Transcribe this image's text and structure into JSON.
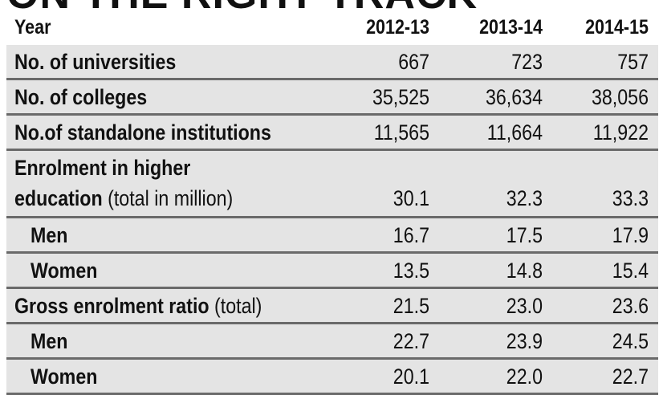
{
  "title": "ON THE RIGHT TRACK",
  "chart_data": {
    "type": "table",
    "columns": [
      "Year",
      "2012-13",
      "2013-14",
      "2014-15"
    ],
    "rows": [
      {
        "label": "No. of universities",
        "values": [
          "667",
          "723",
          "757"
        ]
      },
      {
        "label": "No. of colleges",
        "values": [
          "35,525",
          "36,634",
          "38,056"
        ]
      },
      {
        "label": "No.of standalone institutions",
        "values": [
          "11,565",
          "11,664",
          "11,922"
        ]
      },
      {
        "label": "Enrolment in higher education",
        "label_line1": "Enrolment in higher",
        "label_line2": "education",
        "label_note": "(total in million)",
        "values": [
          "30.1",
          "32.3",
          "33.3"
        ]
      },
      {
        "label": "Men",
        "values": [
          "16.7",
          "17.5",
          "17.9"
        ]
      },
      {
        "label": "Women",
        "values": [
          "13.5",
          "14.8",
          "15.4"
        ]
      },
      {
        "label": "Gross enrolment ratio",
        "label_note": "(total)",
        "values": [
          "21.5",
          "23.0",
          "23.6"
        ]
      },
      {
        "label": "Men",
        "values": [
          "22.7",
          "23.9",
          "24.5"
        ]
      },
      {
        "label": "Women",
        "values": [
          "20.1",
          "22.0",
          "22.7"
        ]
      }
    ]
  }
}
